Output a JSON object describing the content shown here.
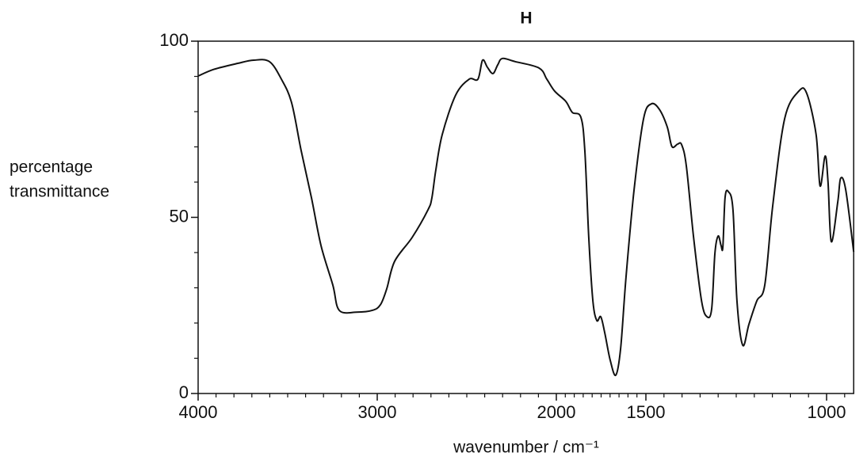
{
  "chart_data": {
    "type": "line",
    "title": "H",
    "ylabel": [
      "percentage",
      "transmittance"
    ],
    "xlabel": "wavenumber / cm⁻¹",
    "xlim": [
      4000,
      925
    ],
    "ylim": [
      0,
      100
    ],
    "xticks": [
      4000,
      3000,
      2000,
      1500,
      1000
    ],
    "yticks": [
      0,
      50,
      100
    ],
    "xminorticks": [
      3900,
      3800,
      3700,
      3600,
      3500,
      3400,
      3300,
      3200,
      3100,
      2900,
      2800,
      2700,
      2600,
      2500,
      2400,
      2300,
      2200,
      2100,
      1950,
      1900,
      1850,
      1800,
      1750,
      1700,
      1650,
      1600,
      1550,
      1450,
      1400,
      1350,
      1300,
      1250,
      1200,
      1150,
      1100,
      1050,
      950
    ],
    "yminorticks": [
      10,
      20,
      30,
      40,
      60,
      70,
      80,
      90
    ],
    "series": [
      {
        "name": "H",
        "color": "#111111",
        "x": [
          4000,
          3912,
          3779,
          3690,
          3602,
          3535,
          3478,
          3425,
          3367,
          3314,
          3248,
          3212,
          3115,
          3027,
          2982,
          2947,
          2903,
          2805,
          2717,
          2695,
          2673,
          2637,
          2562,
          2487,
          2438,
          2412,
          2385,
          2354,
          2327,
          2301,
          2230,
          2097,
          2053,
          2009,
          1947,
          1911,
          1863,
          1841,
          1819,
          1796,
          1774,
          1752,
          1730,
          1699,
          1668,
          1641,
          1611,
          1566,
          1513,
          1485,
          1463,
          1441,
          1428,
          1412,
          1401,
          1388,
          1368,
          1346,
          1331,
          1318,
          1309,
          1300,
          1292,
          1287,
          1281,
          1272,
          1259,
          1248,
          1232,
          1215,
          1193,
          1171,
          1149,
          1116,
          1077,
          1055,
          1029,
          1018,
          1004,
          996,
          987,
          969,
          961,
          947,
          925
        ],
        "values": [
          90.1,
          92,
          93.7,
          94.6,
          94.2,
          89.2,
          82.5,
          69,
          55.5,
          42,
          30.8,
          23.6,
          23.1,
          23.6,
          25.2,
          29.7,
          37.5,
          44.3,
          52.1,
          55.5,
          63.4,
          73.5,
          84.7,
          89.2,
          89.2,
          94.6,
          92.6,
          90.8,
          93.3,
          95.1,
          94.2,
          92.4,
          89.2,
          85.8,
          82.9,
          79.8,
          78.4,
          69,
          44.3,
          26.3,
          20.7,
          21.8,
          17.3,
          9.4,
          5.2,
          12.8,
          33,
          57.8,
          78,
          82.2,
          80.7,
          75.7,
          70.1,
          70.8,
          70.6,
          64.5,
          44.3,
          26.3,
          21.8,
          24,
          39.8,
          44.7,
          42,
          41.6,
          55.5,
          57.3,
          52.1,
          26.3,
          13.7,
          19.6,
          26.3,
          30.8,
          53.3,
          78,
          85.8,
          85.2,
          73.5,
          58.9,
          67.4,
          60,
          43.1,
          54.4,
          61.1,
          57.8,
          40.2
        ]
      }
    ]
  }
}
